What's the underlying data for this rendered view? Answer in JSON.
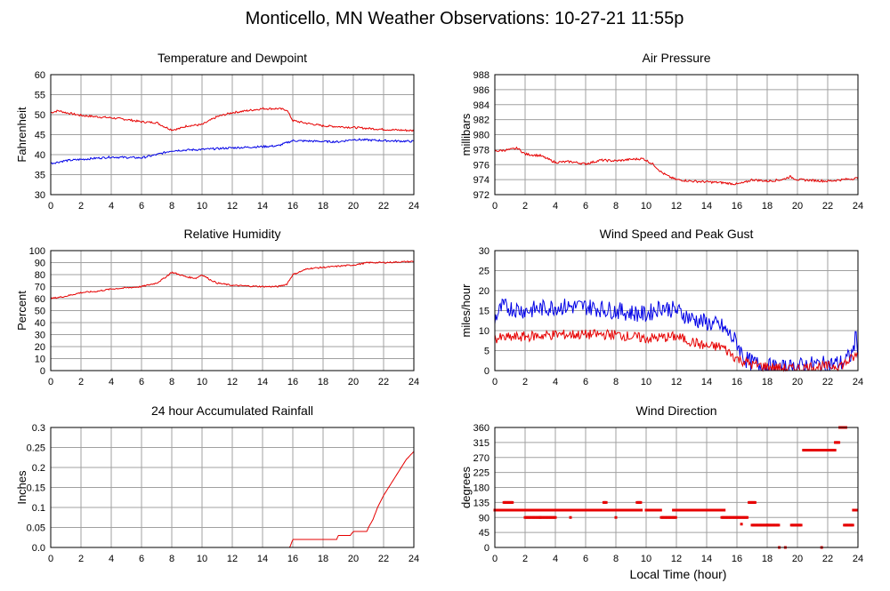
{
  "page": {
    "title": "Monticello, MN Weather Observations: 10-27-21 11:55p",
    "x_axis_label": "Local Time (hour)"
  },
  "colors": {
    "red": "#e60000",
    "blue": "#0000e6",
    "grid": "#a0a0a0",
    "frame": "#000000"
  },
  "chart_data": [
    {
      "id": "temp",
      "type": "line",
      "title": "Temperature and Dewpoint",
      "ylabel": "Fahrenheit",
      "xlim": [
        0,
        24
      ],
      "ylim": [
        30,
        60
      ],
      "yticks": [
        30,
        35,
        40,
        45,
        50,
        55,
        60
      ],
      "xticks": [
        0,
        2,
        4,
        6,
        8,
        10,
        12,
        14,
        16,
        18,
        20,
        22,
        24
      ],
      "grid": true,
      "series": [
        {
          "color": "red",
          "noise": 0.25,
          "points": [
            [
              0,
              50.5
            ],
            [
              0.5,
              51
            ],
            [
              1,
              50.5
            ],
            [
              2,
              49.8
            ],
            [
              4,
              49.2
            ],
            [
              5,
              48.8
            ],
            [
              6,
              48.2
            ],
            [
              7,
              48
            ],
            [
              7.5,
              47
            ],
            [
              8,
              46.2
            ],
            [
              8.5,
              46.5
            ],
            [
              9,
              47.2
            ],
            [
              10,
              47.5
            ],
            [
              10.5,
              48.5
            ],
            [
              11,
              49.5
            ],
            [
              12,
              50.5
            ],
            [
              13,
              51
            ],
            [
              14,
              51.5
            ],
            [
              15,
              51.5
            ],
            [
              15.6,
              51.2
            ],
            [
              16,
              48.5
            ],
            [
              17,
              47.8
            ],
            [
              18,
              47.2
            ],
            [
              20,
              46.8
            ],
            [
              22,
              46.3
            ],
            [
              24,
              46
            ]
          ]
        },
        {
          "color": "blue",
          "noise": 0.25,
          "points": [
            [
              0,
              37.8
            ],
            [
              1,
              38.5
            ],
            [
              2,
              38.8
            ],
            [
              4,
              39.4
            ],
            [
              6,
              39.2
            ],
            [
              7,
              40
            ],
            [
              8,
              41
            ],
            [
              10,
              41.3
            ],
            [
              12,
              41.7
            ],
            [
              14,
              42
            ],
            [
              15,
              42.2
            ],
            [
              16,
              43.5
            ],
            [
              18,
              43.3
            ],
            [
              19,
              43.2
            ],
            [
              20,
              43.8
            ],
            [
              22,
              43.5
            ],
            [
              24,
              43.3
            ]
          ]
        }
      ]
    },
    {
      "id": "pressure",
      "type": "line",
      "title": "Air Pressure",
      "ylabel": "millibars",
      "xlim": [
        0,
        24
      ],
      "ylim": [
        972,
        988
      ],
      "yticks": [
        972,
        974,
        976,
        978,
        980,
        982,
        984,
        986,
        988
      ],
      "xticks": [
        0,
        2,
        4,
        6,
        8,
        10,
        12,
        14,
        16,
        18,
        20,
        22,
        24
      ],
      "grid": true,
      "series": [
        {
          "color": "red",
          "noise": 0.15,
          "points": [
            [
              0,
              977.8
            ],
            [
              1,
              978
            ],
            [
              1.5,
              978.2
            ],
            [
              2,
              977.4
            ],
            [
              3,
              977.2
            ],
            [
              4,
              976.3
            ],
            [
              5,
              976.4
            ],
            [
              6,
              976.1
            ],
            [
              7,
              976.6
            ],
            [
              8,
              976.5
            ],
            [
              9,
              976.7
            ],
            [
              9.8,
              976.8
            ],
            [
              10.5,
              976
            ],
            [
              11,
              975
            ],
            [
              11.5,
              974.4
            ],
            [
              12,
              974
            ],
            [
              13,
              973.8
            ],
            [
              14,
              973.7
            ],
            [
              15,
              973.6
            ],
            [
              16,
              973.4
            ],
            [
              16.5,
              973.6
            ],
            [
              17,
              974
            ],
            [
              18,
              973.8
            ],
            [
              19,
              974
            ],
            [
              19.5,
              974.4
            ],
            [
              20,
              974
            ],
            [
              22,
              973.8
            ],
            [
              23,
              974
            ],
            [
              24,
              974.2
            ]
          ]
        }
      ]
    },
    {
      "id": "humidity",
      "type": "line",
      "title": "Relative Humidity",
      "ylabel": "Percent",
      "xlim": [
        0,
        24
      ],
      "ylim": [
        0,
        100
      ],
      "yticks": [
        0,
        10,
        20,
        30,
        40,
        50,
        60,
        70,
        80,
        90,
        100
      ],
      "xticks": [
        0,
        2,
        4,
        6,
        8,
        10,
        12,
        14,
        16,
        18,
        20,
        22,
        24
      ],
      "grid": true,
      "series": [
        {
          "color": "red",
          "noise": 0.6,
          "points": [
            [
              0,
              60
            ],
            [
              1,
              62
            ],
            [
              2,
              65
            ],
            [
              3,
              66
            ],
            [
              4,
              68
            ],
            [
              6,
              70
            ],
            [
              7,
              73
            ],
            [
              7.5,
              77
            ],
            [
              8,
              82
            ],
            [
              9,
              78
            ],
            [
              9.6,
              77
            ],
            [
              10,
              80
            ],
            [
              10.5,
              76
            ],
            [
              11,
              73
            ],
            [
              12,
              71
            ],
            [
              14,
              70
            ],
            [
              15,
              70
            ],
            [
              15.6,
              72
            ],
            [
              16,
              80
            ],
            [
              17,
              85
            ],
            [
              18,
              86
            ],
            [
              20,
              88
            ],
            [
              21,
              90
            ],
            [
              22,
              90
            ],
            [
              24,
              91
            ]
          ]
        }
      ]
    },
    {
      "id": "wind",
      "type": "line",
      "title": "Wind Speed and Peak Gust",
      "ylabel": "miles/hour",
      "xlim": [
        0,
        24
      ],
      "ylim": [
        0,
        30
      ],
      "yticks": [
        0,
        5,
        10,
        15,
        20,
        25,
        30
      ],
      "xticks": [
        0,
        2,
        4,
        6,
        8,
        10,
        12,
        14,
        16,
        18,
        20,
        22,
        24
      ],
      "grid": true,
      "series": [
        {
          "color": "blue",
          "noise": 2.2,
          "points": [
            [
              0,
              13
            ],
            [
              0.5,
              16
            ],
            [
              2,
              15
            ],
            [
              4,
              16
            ],
            [
              6,
              16
            ],
            [
              8,
              15
            ],
            [
              10,
              14
            ],
            [
              11,
              16
            ],
            [
              12,
              15
            ],
            [
              13,
              13
            ],
            [
              14,
              12
            ],
            [
              15,
              11
            ],
            [
              16,
              7
            ],
            [
              16.5,
              3
            ],
            [
              17,
              2
            ],
            [
              18,
              1
            ],
            [
              19,
              0.5
            ],
            [
              20,
              1
            ],
            [
              21,
              1.5
            ],
            [
              22,
              1.5
            ],
            [
              23,
              2
            ],
            [
              23.6,
              4
            ],
            [
              23.9,
              9
            ],
            [
              24,
              5
            ]
          ]
        },
        {
          "color": "red",
          "noise": 1.3,
          "points": [
            [
              0,
              8
            ],
            [
              2,
              8.5
            ],
            [
              4,
              9
            ],
            [
              6,
              9
            ],
            [
              8,
              9
            ],
            [
              10,
              8
            ],
            [
              12,
              8.5
            ],
            [
              14,
              6
            ],
            [
              15,
              6
            ],
            [
              16,
              3
            ],
            [
              17,
              1.5
            ],
            [
              18,
              1
            ],
            [
              19,
              0.5
            ],
            [
              20,
              0.5
            ],
            [
              21,
              1
            ],
            [
              22,
              1
            ],
            [
              23,
              1.5
            ],
            [
              24,
              4
            ]
          ]
        }
      ]
    },
    {
      "id": "rain",
      "type": "line",
      "title": "24 hour Accumulated Rainfall",
      "ylabel": "Inches",
      "xlim": [
        0,
        24
      ],
      "ylim": [
        0,
        0.3
      ],
      "yticks": [
        0.0,
        0.05,
        0.1,
        0.15,
        0.2,
        0.25,
        0.3
      ],
      "ytick_labels": [
        "0.0",
        "0.05",
        "0.1",
        "0.15",
        "0.2",
        "0.25",
        "0.3"
      ],
      "xticks": [
        0,
        2,
        4,
        6,
        8,
        10,
        12,
        14,
        16,
        18,
        20,
        22,
        24
      ],
      "grid": true,
      "series": [
        {
          "color": "red",
          "noise": 0,
          "points": [
            [
              0,
              0
            ],
            [
              15.8,
              0
            ],
            [
              16,
              0.02
            ],
            [
              18.9,
              0.02
            ],
            [
              19,
              0.03
            ],
            [
              19.8,
              0.03
            ],
            [
              20,
              0.04
            ],
            [
              20.9,
              0.04
            ],
            [
              21,
              0.05
            ],
            [
              21.3,
              0.07
            ],
            [
              21.6,
              0.1
            ],
            [
              22,
              0.13
            ],
            [
              22.5,
              0.16
            ],
            [
              23,
              0.19
            ],
            [
              23.5,
              0.22
            ],
            [
              24,
              0.24
            ]
          ]
        }
      ]
    },
    {
      "id": "direction",
      "type": "scatter",
      "title": "Wind Direction",
      "ylabel": "degrees",
      "xlim": [
        0,
        24
      ],
      "ylim": [
        0,
        360
      ],
      "yticks": [
        0,
        45,
        90,
        135,
        180,
        225,
        270,
        315,
        360
      ],
      "xticks": [
        0,
        2,
        4,
        6,
        8,
        10,
        12,
        14,
        16,
        18,
        20,
        22,
        24
      ],
      "grid": true,
      "segments": [
        {
          "x0": 0,
          "x1": 9.7,
          "y": 112
        },
        {
          "x0": 0.6,
          "x1": 1.2,
          "y": 135
        },
        {
          "x0": 2,
          "x1": 4,
          "y": 90
        },
        {
          "x0": 7.2,
          "x1": 7.4,
          "y": 135
        },
        {
          "x0": 9.4,
          "x1": 9.7,
          "y": 135
        },
        {
          "x0": 10,
          "x1": 11,
          "y": 112
        },
        {
          "x0": 11,
          "x1": 12,
          "y": 90
        },
        {
          "x0": 11.8,
          "x1": 15.2,
          "y": 112
        },
        {
          "x0": 15,
          "x1": 16.7,
          "y": 90
        },
        {
          "x0": 16.8,
          "x1": 17.2,
          "y": 135
        },
        {
          "x0": 17,
          "x1": 18.8,
          "y": 67
        },
        {
          "x0": 19.6,
          "x1": 20.3,
          "y": 67
        },
        {
          "x0": 20.4,
          "x1": 22.5,
          "y": 292
        },
        {
          "x0": 22.5,
          "x1": 22.8,
          "y": 315
        },
        {
          "x0": 22.8,
          "x1": 23.2,
          "y": 360
        },
        {
          "x0": 23.1,
          "x1": 23.7,
          "y": 67
        },
        {
          "x0": 23.7,
          "x1": 24,
          "y": 112
        }
      ],
      "points": [
        [
          3,
          90
        ],
        [
          5,
          90
        ],
        [
          8,
          90
        ],
        [
          18.8,
          0
        ],
        [
          19.2,
          0
        ],
        [
          21.6,
          0
        ],
        [
          16.3,
          70
        ],
        [
          18,
          67
        ]
      ]
    }
  ]
}
